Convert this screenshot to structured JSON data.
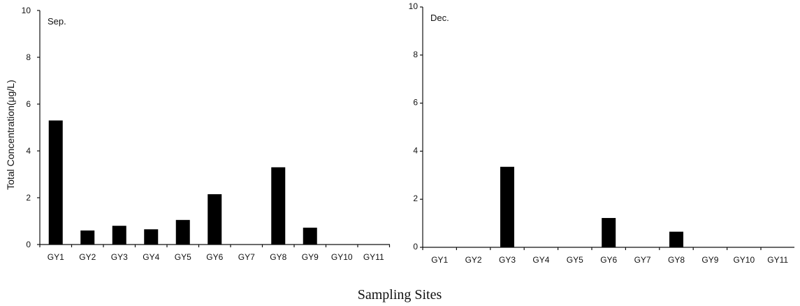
{
  "figure": {
    "ylabel": "Total Concentration(μg/L)",
    "xlabel": "Sampling Sites"
  },
  "chart_data": [
    {
      "type": "bar",
      "panel_label": "Sep.",
      "categories": [
        "GY1",
        "GY2",
        "GY3",
        "GY4",
        "GY5",
        "GY6",
        "GY7",
        "GY8",
        "GY9",
        "GY10",
        "GY11"
      ],
      "values": [
        5.3,
        0.6,
        0.8,
        0.65,
        1.05,
        2.15,
        0,
        3.3,
        0.72,
        0,
        0
      ],
      "ylim": [
        0,
        10
      ],
      "yticks": [
        0,
        2,
        4,
        6,
        8,
        10
      ],
      "ylabel": "Total Concentration(μg/L)",
      "xlabel": "Sampling Sites",
      "grid": false,
      "bar_color": "#000000"
    },
    {
      "type": "bar",
      "panel_label": "Dec.",
      "categories": [
        "GY1",
        "GY2",
        "GY3",
        "GY4",
        "GY5",
        "GY6",
        "GY7",
        "GY8",
        "GY9",
        "GY10",
        "GY11"
      ],
      "values": [
        0,
        0,
        3.35,
        0,
        0,
        1.22,
        0,
        0.65,
        0,
        0,
        0
      ],
      "ylim": [
        0,
        10
      ],
      "yticks": [
        0,
        2,
        4,
        6,
        8,
        10
      ],
      "xlabel": "Sampling Sites",
      "grid": false,
      "bar_color": "#000000"
    }
  ]
}
